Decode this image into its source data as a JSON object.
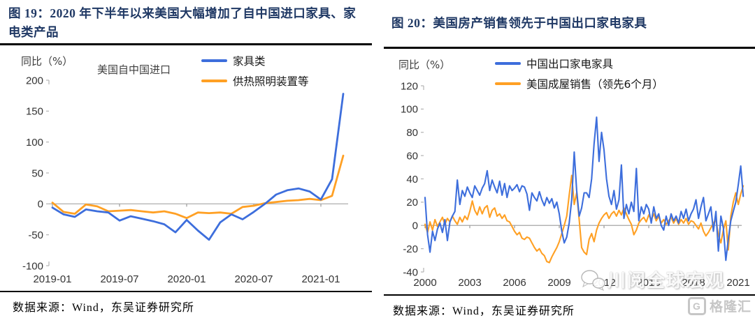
{
  "page": {
    "background": "#ffffff"
  },
  "colors": {
    "title_navy": "#1F3864",
    "series_blue": "#3D6EDC",
    "series_orange": "#FFA024",
    "zero_line": "#A6A6A6",
    "axis_text": "#333333",
    "watermark_gray": "#C6C6C6"
  },
  "figures": [
    {
      "title": "图 19：2020 年下半年以来美国大幅增加了自中国进口家具、家电类产品",
      "y_unit": "同比（%）",
      "inner_title": "美国自中国进口",
      "legend": [
        {
          "label": "家具类",
          "color": "#3D6EDC"
        },
        {
          "label": "供热照明装置等",
          "color": "#FFA024"
        }
      ],
      "source": "数据来源：Wind，东吴证券研究所"
    },
    {
      "title": "图 20：美国房产销售领先于中国出口家电家具",
      "y_unit": "同比（%）",
      "inner_title": "",
      "legend": [
        {
          "label": "中国出口家电家具",
          "color": "#3D6EDC"
        },
        {
          "label": "美国成屋销售（领先6个月）",
          "color": "#FFA024"
        }
      ],
      "source": "数据来源：Wind，东吴证券研究所"
    }
  ],
  "watermark": {
    "text": "川阅全球宏观",
    "icon": "wechat-bubbles-icon"
  },
  "logo": {
    "glyph": "G",
    "text": "格隆汇"
  },
  "chart_data": [
    {
      "type": "line",
      "title": "美国自中国进口",
      "ylabel": "同比（%）",
      "x_first": "2019-01",
      "x_last": "2021-03",
      "x_step_months": 1,
      "x_ticks": [
        "2019-01",
        "2019-07",
        "2020-01",
        "2020-07",
        "2021-01"
      ],
      "ylim": [
        -100,
        200
      ],
      "ytick_step": 50,
      "grid": "zero-line-only",
      "legend_position": "top",
      "series": [
        {
          "name": "家具类",
          "color": "#3D6EDC",
          "values": [
            -6,
            -17,
            -21,
            -9,
            -12,
            -14,
            -27,
            -20,
            -24,
            -28,
            -33,
            -46,
            -26,
            -43,
            -58,
            -30,
            -17,
            -25,
            -13,
            0,
            15,
            22,
            25,
            20,
            7,
            40,
            178
          ]
        },
        {
          "name": "供热照明装置等",
          "color": "#FFA024",
          "values": [
            2,
            -13,
            -16,
            -1,
            -4,
            -12,
            -11,
            -10,
            -12,
            -14,
            -12,
            -16,
            -23,
            -14,
            -15,
            -14,
            -16,
            -5,
            -3,
            1,
            3,
            5,
            6,
            8,
            6,
            13,
            78
          ]
        }
      ]
    },
    {
      "type": "line",
      "title": "",
      "ylabel": "同比（%）",
      "x_first": "2000-01",
      "x_last": "2021-05",
      "x_step_months": 2,
      "x_ticks": [
        "2000",
        "2003",
        "2006",
        "2009",
        "2012",
        "2015",
        "2018",
        "2021"
      ],
      "ylim": [
        -40,
        120
      ],
      "ytick_step": 20,
      "grid": "zero-line-only",
      "legend_position": "top",
      "series": [
        {
          "name": "中国出口家电家具",
          "color": "#3D6EDC",
          "values": [
            24,
            -8,
            -23,
            -5,
            -13,
            -3,
            2,
            -6,
            5,
            -13,
            3,
            8,
            12,
            39,
            18,
            30,
            25,
            33,
            28,
            24,
            34,
            30,
            26,
            32,
            36,
            47,
            30,
            39,
            33,
            28,
            38,
            26,
            36,
            24,
            34,
            30,
            32,
            35,
            29,
            34,
            33,
            27,
            13,
            28,
            24,
            21,
            29,
            22,
            17,
            24,
            19,
            23,
            15,
            20,
            10,
            -5,
            -15,
            -10,
            2,
            22,
            63,
            30,
            8,
            15,
            28,
            28,
            24,
            40,
            70,
            93,
            55,
            80,
            65,
            40,
            25,
            18,
            30,
            14,
            22,
            52,
            6,
            18,
            10,
            20,
            12,
            49,
            4,
            16,
            10,
            18,
            14,
            2,
            16,
            6,
            10,
            0,
            -4,
            8,
            0,
            10,
            4,
            8,
            2,
            12,
            6,
            14,
            4,
            10,
            14,
            22,
            6,
            16,
            24,
            4,
            10,
            16,
            -5,
            12,
            -22,
            8,
            -2,
            -30,
            -12,
            4,
            12,
            20,
            35,
            51,
            25
          ]
        },
        {
          "name": "美国成屋销售（领先6个月）",
          "color": "#FFA024",
          "values": [
            1,
            -6,
            3,
            -4,
            5,
            -1,
            3,
            7,
            1,
            6,
            3,
            8,
            4,
            1,
            7,
            3,
            8,
            5,
            12,
            21,
            13,
            9,
            16,
            10,
            15,
            17,
            7,
            13,
            15,
            8,
            10,
            6,
            9,
            4,
            3,
            -1,
            -5,
            -8,
            -6,
            -11,
            -12,
            -10,
            -11,
            -15,
            -19,
            -22,
            -20,
            -24,
            -26,
            -31,
            -32,
            -27,
            -23,
            -19,
            -14,
            -7,
            0,
            8,
            26,
            43,
            18,
            28,
            5,
            -19,
            -23,
            -25,
            -12,
            -7,
            -14,
            -4,
            2,
            6,
            9,
            11,
            6,
            10,
            12,
            8,
            13,
            9,
            15,
            10,
            5,
            1,
            -8,
            -4,
            2,
            5,
            7,
            3,
            9,
            5,
            10,
            4,
            8,
            2,
            5,
            1,
            4,
            7,
            2,
            6,
            1,
            5,
            2,
            6,
            1,
            4,
            3,
            0,
            -3,
            2,
            -5,
            -9,
            -6,
            -2,
            2,
            5,
            -8,
            -15,
            -4,
            4,
            -21,
            8,
            20,
            28,
            18,
            27,
            34
          ]
        }
      ]
    }
  ]
}
